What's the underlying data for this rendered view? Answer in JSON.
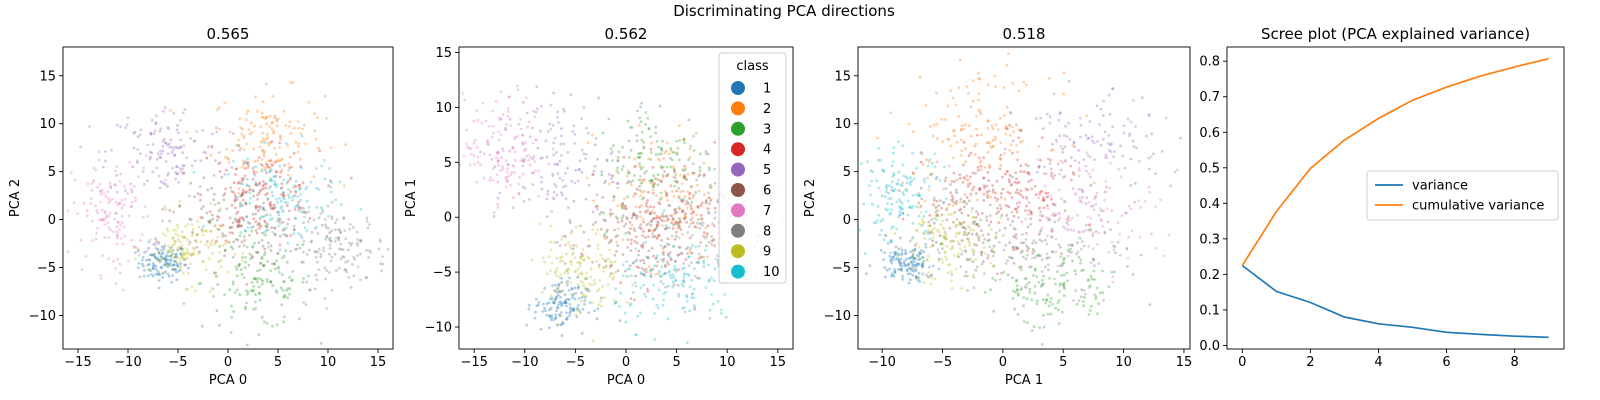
{
  "figure": {
    "title": "Discriminating PCA directions"
  },
  "palette": [
    "#1f77b4",
    "#ff7f0e",
    "#2ca02c",
    "#d62728",
    "#9467bd",
    "#8c564b",
    "#e377c2",
    "#7f7f7f",
    "#bcbd22",
    "#17becf"
  ],
  "legend": {
    "title": "class",
    "entries": [
      "1",
      "2",
      "3",
      "4",
      "5",
      "6",
      "7",
      "8",
      "9",
      "10"
    ],
    "placement": "top-right"
  },
  "chart_data": [
    {
      "type": "scatter",
      "title": "0.565",
      "xlabel": "PCA 0",
      "ylabel": "PCA 2",
      "xlim": [
        -16.5,
        16.5
      ],
      "ylim": [
        -13.5,
        18
      ],
      "xticks": [
        -15,
        -10,
        -5,
        0,
        5,
        10,
        15
      ],
      "yticks": [
        -10,
        -5,
        0,
        5,
        10,
        15
      ],
      "clusters": [
        {
          "class": "1",
          "cx": -6.5,
          "cy": -4.5,
          "sx": 1.2,
          "sy": 1.0,
          "n": 130
        },
        {
          "class": "2",
          "cx": 4.0,
          "cy": 8.5,
          "sx": 2.8,
          "sy": 2.5,
          "n": 150
        },
        {
          "class": "3",
          "cx": 3.0,
          "cy": -6.5,
          "sx": 2.8,
          "sy": 2.5,
          "n": 150
        },
        {
          "class": "4",
          "cx": 3.5,
          "cy": 2.5,
          "sx": 2.8,
          "sy": 2.3,
          "n": 150
        },
        {
          "class": "5",
          "cx": -6.0,
          "cy": 7.0,
          "sx": 3.0,
          "sy": 2.5,
          "n": 140
        },
        {
          "class": "6",
          "cx": 0.0,
          "cy": 0.0,
          "sx": 3.0,
          "sy": 2.5,
          "n": 140
        },
        {
          "class": "7",
          "cx": -11.5,
          "cy": 0.5,
          "sx": 2.0,
          "sy": 3.0,
          "n": 140
        },
        {
          "class": "8",
          "cx": 11.0,
          "cy": -3.0,
          "sx": 2.5,
          "sy": 2.0,
          "n": 150
        },
        {
          "class": "9",
          "cx": -4.0,
          "cy": -3.0,
          "sx": 2.0,
          "sy": 1.8,
          "n": 140
        },
        {
          "class": "10",
          "cx": 5.0,
          "cy": 2.0,
          "sx": 2.8,
          "sy": 2.3,
          "n": 150
        }
      ]
    },
    {
      "type": "scatter",
      "title": "0.562",
      "xlabel": "PCA 0",
      "ylabel": "PCA 1",
      "xlim": [
        -16.5,
        16.5
      ],
      "ylim": [
        -12,
        15.5
      ],
      "xticks": [
        -15,
        -10,
        -5,
        0,
        5,
        10,
        15
      ],
      "yticks": [
        -10,
        -5,
        0,
        5,
        10,
        15
      ],
      "clusters": [
        {
          "class": "1",
          "cx": -6.5,
          "cy": -8.0,
          "sx": 1.3,
          "sy": 1.2,
          "n": 130
        },
        {
          "class": "2",
          "cx": 4.0,
          "cy": 2.0,
          "sx": 3.0,
          "sy": 3.0,
          "n": 150
        },
        {
          "class": "3",
          "cx": 3.0,
          "cy": 5.0,
          "sx": 3.0,
          "sy": 3.0,
          "n": 150
        },
        {
          "class": "4",
          "cx": 4.0,
          "cy": 0.0,
          "sx": 3.0,
          "sy": 2.5,
          "n": 150
        },
        {
          "class": "5",
          "cx": -7.0,
          "cy": 5.0,
          "sx": 3.0,
          "sy": 3.0,
          "n": 140
        },
        {
          "class": "6",
          "cx": 0.0,
          "cy": -2.0,
          "sx": 3.0,
          "sy": 2.5,
          "n": 140
        },
        {
          "class": "7",
          "cx": -12.0,
          "cy": 6.0,
          "sx": 2.0,
          "sy": 2.5,
          "n": 140
        },
        {
          "class": "8",
          "cx": 8.0,
          "cy": 0.0,
          "sx": 3.0,
          "sy": 3.0,
          "n": 150
        },
        {
          "class": "9",
          "cx": -4.5,
          "cy": -5.0,
          "sx": 2.0,
          "sy": 2.0,
          "n": 140
        },
        {
          "class": "10",
          "cx": 5.0,
          "cy": -6.0,
          "sx": 3.0,
          "sy": 2.0,
          "n": 150
        }
      ]
    },
    {
      "type": "scatter",
      "title": "0.518",
      "xlabel": "PCA 1",
      "ylabel": "PCA 2",
      "xlim": [
        -12,
        15.5
      ],
      "ylim": [
        -13.5,
        18
      ],
      "xticks": [
        -10,
        -5,
        0,
        5,
        10,
        15
      ],
      "yticks": [
        -10,
        -5,
        0,
        5,
        10,
        15
      ],
      "clusters": [
        {
          "class": "1",
          "cx": -8.0,
          "cy": -4.5,
          "sx": 1.2,
          "sy": 1.0,
          "n": 130
        },
        {
          "class": "2",
          "cx": -2.0,
          "cy": 9.0,
          "sx": 3.0,
          "sy": 3.0,
          "n": 150
        },
        {
          "class": "3",
          "cx": 4.0,
          "cy": -7.0,
          "sx": 3.0,
          "sy": 2.5,
          "n": 150
        },
        {
          "class": "4",
          "cx": 0.0,
          "cy": 3.0,
          "sx": 3.0,
          "sy": 2.5,
          "n": 150
        },
        {
          "class": "5",
          "cx": 7.0,
          "cy": 7.0,
          "sx": 3.0,
          "sy": 3.0,
          "n": 140
        },
        {
          "class": "6",
          "cx": -2.0,
          "cy": 0.0,
          "sx": 3.0,
          "sy": 2.5,
          "n": 140
        },
        {
          "class": "7",
          "cx": 7.0,
          "cy": 1.0,
          "sx": 3.0,
          "sy": 3.0,
          "n": 140
        },
        {
          "class": "8",
          "cx": 2.0,
          "cy": -3.0,
          "sx": 4.0,
          "sy": 2.5,
          "n": 150
        },
        {
          "class": "9",
          "cx": -5.0,
          "cy": -2.5,
          "sx": 2.0,
          "sy": 2.0,
          "n": 140
        },
        {
          "class": "10",
          "cx": -8.5,
          "cy": 2.5,
          "sx": 1.8,
          "sy": 2.5,
          "n": 150
        }
      ]
    },
    {
      "type": "line",
      "title": "Scree plot (PCA explained variance)",
      "xlabel": "",
      "ylabel": "",
      "xlim": [
        -0.45,
        9.45
      ],
      "ylim": [
        -0.01,
        0.84
      ],
      "xticks": [
        0,
        2,
        4,
        6,
        8
      ],
      "yticks": [
        0.0,
        0.1,
        0.2,
        0.3,
        0.4,
        0.5,
        0.6,
        0.7,
        0.8
      ],
      "x": [
        0,
        1,
        2,
        3,
        4,
        5,
        6,
        7,
        8,
        9
      ],
      "series": [
        {
          "name": "variance",
          "color": "#1f77b4",
          "values": [
            0.225,
            0.152,
            0.121,
            0.08,
            0.061,
            0.051,
            0.037,
            0.031,
            0.026,
            0.023
          ]
        },
        {
          "name": "cumulative variance",
          "color": "#ff7f0e",
          "values": [
            0.225,
            0.377,
            0.498,
            0.578,
            0.639,
            0.69,
            0.727,
            0.758,
            0.784,
            0.807
          ]
        }
      ],
      "legend_placement": "center-right"
    }
  ]
}
